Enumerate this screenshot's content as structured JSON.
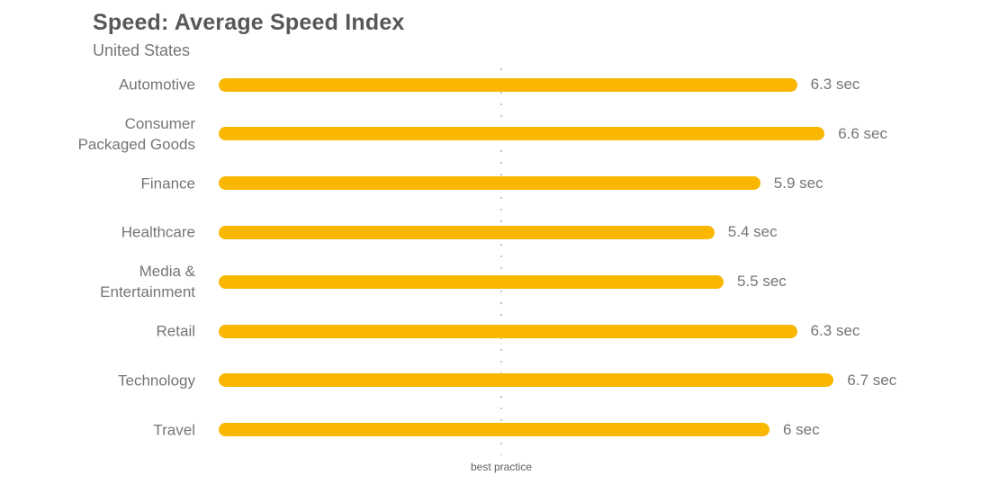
{
  "chart_data": {
    "type": "bar",
    "orientation": "horizontal",
    "title": "Speed: Average Speed Index",
    "subtitle": "United States",
    "unit": "sec",
    "categories": [
      "Automotive",
      "Consumer Packaged Goods",
      "Finance",
      "Healthcare",
      "Media & Entertainment",
      "Retail",
      "Technology",
      "Travel"
    ],
    "label_lines": [
      [
        "Automotive"
      ],
      [
        "Consumer",
        "Packaged Goods"
      ],
      [
        "Finance"
      ],
      [
        "Healthcare"
      ],
      [
        "Media &",
        "Entertainment"
      ],
      [
        "Retail"
      ],
      [
        "Technology"
      ],
      [
        "Travel"
      ]
    ],
    "values": [
      6.3,
      6.6,
      5.9,
      5.4,
      5.5,
      6.3,
      6.7,
      6
    ],
    "value_labels": [
      "6.3 sec",
      "6.6 sec",
      "5.9 sec",
      "5.4 sec",
      "5.5 sec",
      "6.3 sec",
      "6.7 sec",
      "6 sec"
    ],
    "xlim": [
      0,
      8.4
    ],
    "grid": "off",
    "legend": "none",
    "benchmark": {
      "label": "best practice",
      "value": 3
    }
  },
  "colors": {
    "bar": "#f9b700",
    "title_text": "#58585a",
    "body_text": "#757575",
    "benchmark_line": "#c2c2c2",
    "background": "#ffffff"
  }
}
